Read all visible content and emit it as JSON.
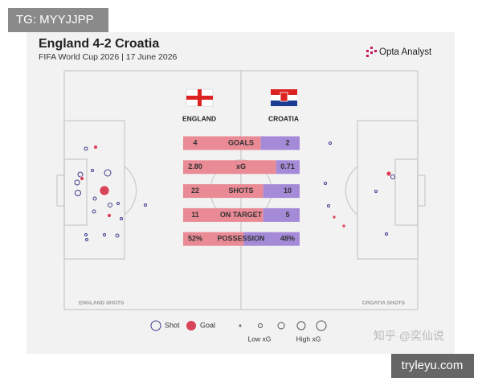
{
  "watermark_top": "TG: MYYJJPP",
  "header": {
    "title": "England 4-2 Croatia",
    "subtitle": "FIFA World Cup 2026 | 17 June 2026",
    "brand": "Opta Analyst"
  },
  "teams": {
    "home": "ENGLAND",
    "away": "CROATIA"
  },
  "stats": [
    {
      "name": "GOALS",
      "home": 4,
      "away": 2
    },
    {
      "name": "xG",
      "home": 2.8,
      "home_label": "2.80",
      "away": 0.71
    },
    {
      "name": "SHOTS",
      "home": 22,
      "away": 10
    },
    {
      "name": "ON TARGET",
      "home": 11,
      "away": 5
    },
    {
      "name": "POSSESSION",
      "home": 52,
      "home_label": "52%",
      "away": 48,
      "away_label": "48%"
    }
  ],
  "pitch_labels": {
    "home": "ENGLAND SHOTS",
    "away": "CROATIA SHOTS"
  },
  "legend": {
    "shot": "Shot",
    "goal": "Goal",
    "low": "Low xG",
    "high": "High xG"
  },
  "watermarks": [
    "知乎 @奕仙说",
    "tryleyu.com"
  ]
}
